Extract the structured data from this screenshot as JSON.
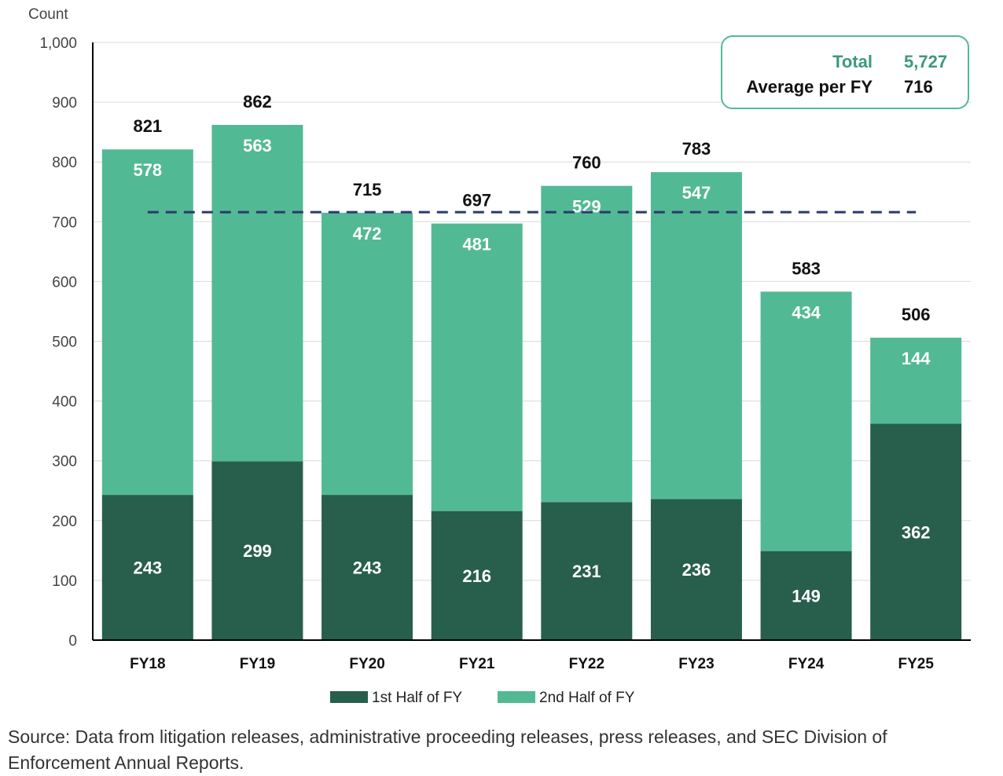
{
  "chart_data": {
    "type": "bar",
    "stacked": true,
    "ylabel": "Count",
    "ylim": [
      0,
      1000
    ],
    "yticks": [
      0,
      100,
      200,
      300,
      400,
      500,
      600,
      700,
      800,
      900,
      1000
    ],
    "ytick_labels": [
      "0",
      "100",
      "200",
      "300",
      "400",
      "500",
      "600",
      "700",
      "800",
      "900",
      "1,000"
    ],
    "categories": [
      "FY18",
      "FY19",
      "FY20",
      "FY21",
      "FY22",
      "FY23",
      "FY24",
      "FY25"
    ],
    "series": [
      {
        "name": "1st Half of FY",
        "values": [
          243,
          299,
          243,
          216,
          231,
          236,
          149,
          362
        ],
        "color": "#285e4c"
      },
      {
        "name": "2nd Half of FY",
        "values": [
          578,
          563,
          472,
          481,
          529,
          547,
          434,
          144
        ],
        "color": "#52b995"
      }
    ],
    "totals": [
      821,
      862,
      715,
      697,
      760,
      783,
      583,
      506
    ],
    "average_line": {
      "value": 716,
      "style": "dashed",
      "color": "#2b3a6b"
    },
    "legend_position": "bottom",
    "grid": true
  },
  "summary_box": {
    "total_label": "Total",
    "total_value": "5,727",
    "average_label": "Average per FY",
    "average_value": "716",
    "accent_color": "#3a9a78"
  },
  "source_note": "Source: Data from litigation releases, administrative proceeding releases, press releases, and SEC Division of Enforcement Annual Reports."
}
